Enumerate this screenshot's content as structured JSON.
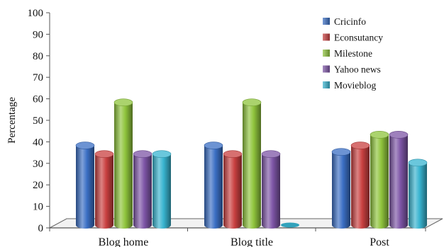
{
  "chart_data": {
    "type": "bar",
    "title": "",
    "xlabel": "",
    "ylabel": "Percentage",
    "ylim": [
      0,
      100
    ],
    "yticks": [
      0,
      10,
      20,
      30,
      40,
      50,
      60,
      70,
      80,
      90,
      100
    ],
    "categories": [
      "Blog home",
      "Blog title",
      "Post"
    ],
    "series": [
      {
        "name": "Cricinfo",
        "color": "#3b6fc4",
        "values": [
          37,
          37,
          34
        ]
      },
      {
        "name": "Econsutancy",
        "color": "#c94040",
        "values": [
          33,
          33,
          37
        ]
      },
      {
        "name": "Milestone",
        "color": "#8fc43c",
        "values": [
          57,
          57,
          42
        ]
      },
      {
        "name": "Yahoo news",
        "color": "#7d55a6",
        "values": [
          33,
          33,
          42
        ]
      },
      {
        "name": "Movieblog",
        "color": "#38b4d0",
        "values": [
          33,
          0,
          29
        ]
      }
    ],
    "legend_position": "top-right",
    "grid": false,
    "style": "3d-cylinder"
  }
}
